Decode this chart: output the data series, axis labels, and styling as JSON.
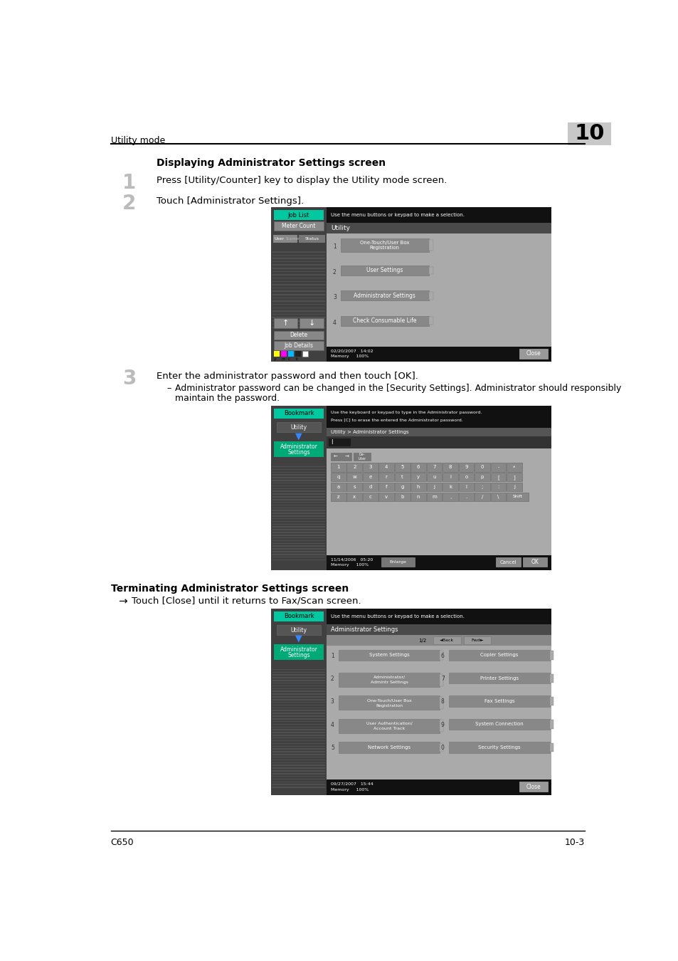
{
  "page_bg": "#ffffff",
  "header_text": "Utility mode",
  "header_chapter": "10",
  "footer_left": "C650",
  "footer_right": "10-3",
  "section1_title": "Displaying Administrator Settings screen",
  "step1_num": "1",
  "step1_text": "Press [Utility/Counter] key to display the Utility mode screen.",
  "step2_num": "2",
  "step2_text": "Touch [Administrator Settings].",
  "step3_num": "3",
  "step3_text": "Enter the administrator password and then touch [OK].",
  "step3_sub1": "Administrator password can be changed in the [Security Settings]. Administrator should responsibly",
  "step3_sub2": "maintain the password.",
  "section2_title": "Terminating Administrator Settings screen",
  "arrow_text": "Touch [Close] until it returns to Fax/Scan screen.",
  "screen1_date": "02/20/2007   14:02",
  "screen1_mem": "Memory     100%",
  "screen2_date": "11/14/2006   05:20",
  "screen2_mem": "Memory     100%",
  "screen3_date": "09/27/2007   15:44",
  "screen3_mem": "Memory     100%",
  "btn_green": "#00c8a0",
  "btn_blue_green": "#1a7a5e",
  "left_panel_bg": "#5a5a5a",
  "left_panel_stripe": "#686868",
  "screen_outer": "#2a2a2a",
  "top_bar_bg": "#111111",
  "utility_header_bg": "#4a4a4a",
  "content_bg": "#aaaaaa",
  "bottom_bar_bg": "#111111",
  "btn_gray_light": "#888888",
  "btn_gray_med": "#777777",
  "btn_gray_dark": "#666666"
}
